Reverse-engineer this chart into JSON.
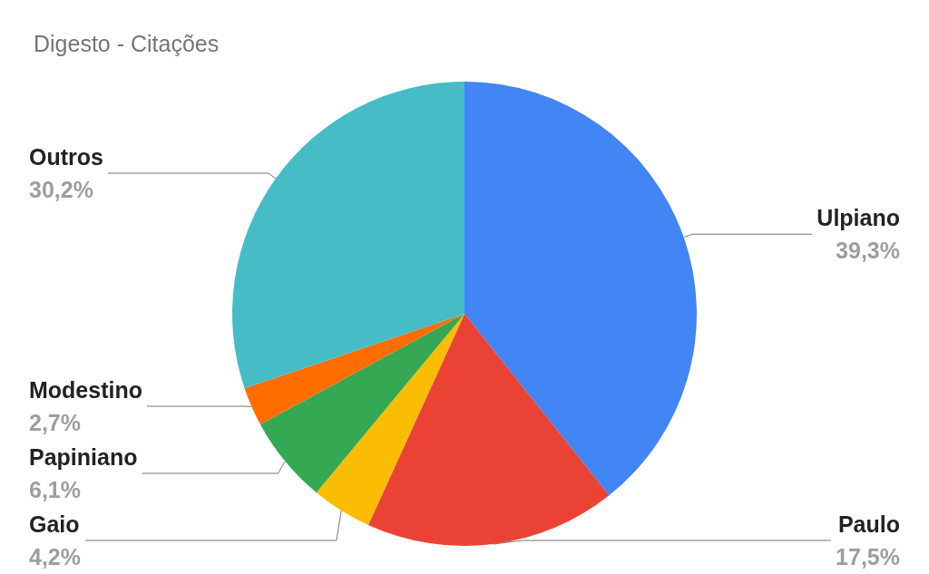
{
  "chart_data": {
    "type": "pie",
    "title": "Digesto - Citações",
    "categories": [
      "Ulpiano",
      "Paulo",
      "Gaio",
      "Papiniano",
      "Modestino",
      "Outros"
    ],
    "values": [
      39.3,
      17.5,
      4.2,
      6.1,
      2.7,
      30.2
    ],
    "colors": [
      "#4285f4",
      "#ea4335",
      "#fbbc04",
      "#34a853",
      "#ff6d01",
      "#46bdc6"
    ],
    "value_labels": [
      "39,3%",
      "17,5%",
      "4,2%",
      "6,1%",
      "2,7%",
      "30,2%"
    ],
    "legend": false
  }
}
